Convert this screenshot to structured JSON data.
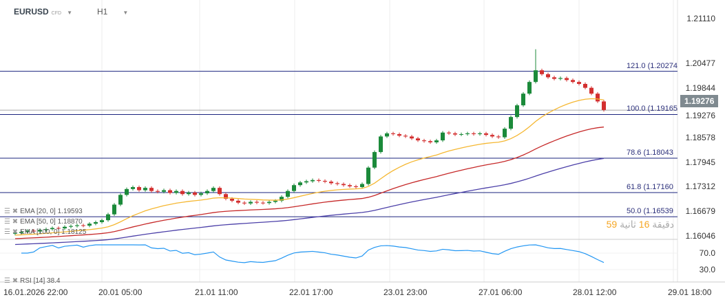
{
  "header": {
    "symbol": "EURUSD",
    "symbol_type": "CFD",
    "timeframe": "H1"
  },
  "price_axis": {
    "ticks": [
      "1.21110",
      "1.20477",
      "1.19844",
      "1.19276",
      "1.18578",
      "1.17945",
      "1.17312",
      "1.16679",
      "1.16046"
    ],
    "current_price": "1.19276"
  },
  "fibonacci": [
    {
      "label": "121.0 (1.20274",
      "price": 1.20274
    },
    {
      "label": "100.0 (1.19165",
      "price": 1.19165
    },
    {
      "label": "78.6 (1.18043",
      "price": 1.18043
    },
    {
      "label": "61.8 (1.17160",
      "price": 1.1716
    },
    {
      "label": "50.0 (1.16539",
      "price": 1.16539
    }
  ],
  "indicators": [
    {
      "label": "EMA [20, 0] 1.19593",
      "period": 20,
      "color": "#f5b731"
    },
    {
      "label": "EMA [50, 0] 1.18870",
      "period": 50,
      "color": "#c62828"
    },
    {
      "label": "EMA [100, 0] 1.18125",
      "period": 100,
      "color": "#4b3fa8"
    }
  ],
  "rsi": {
    "label": "RSI [14] 38.4",
    "levels": [
      "70.0",
      "30.0"
    ],
    "color": "#2196f3"
  },
  "countdown": {
    "minutes": "59",
    "min_word": "دقيقة",
    "seconds": "16",
    "sec_word": "ثانية"
  },
  "time_axis": [
    "16.01.2026 22:00",
    "20.01 05:00",
    "21.01 11:00",
    "22.01 17:00",
    "23.01 23:00",
    "27.01 06:00",
    "28.01 12:00",
    "29.01 18:00"
  ],
  "colors": {
    "up": "#1b8a3a",
    "down": "#d32f2f",
    "fib": "#1a237e"
  },
  "chart_data": {
    "type": "candlestick",
    "closes": [
      1.1612,
      1.1615,
      1.1618,
      1.1616,
      1.162,
      1.1622,
      1.1625,
      1.1624,
      1.1628,
      1.163,
      1.1632,
      1.1631,
      1.1636,
      1.164,
      1.1645,
      1.166,
      1.1685,
      1.171,
      1.1725,
      1.173,
      1.1722,
      1.1728,
      1.172,
      1.1718,
      1.1722,
      1.1715,
      1.172,
      1.1712,
      1.1716,
      1.171,
      1.1714,
      1.172,
      1.1728,
      1.1712,
      1.17,
      1.1695,
      1.169,
      1.1688,
      1.1692,
      1.169,
      1.1689,
      1.1692,
      1.1695,
      1.1705,
      1.172,
      1.1735,
      1.1742,
      1.1745,
      1.1748,
      1.1746,
      1.1744,
      1.174,
      1.1738,
      1.1735,
      1.1732,
      1.173,
      1.1738,
      1.178,
      1.182,
      1.186,
      1.1868,
      1.1866,
      1.1862,
      1.186,
      1.1855,
      1.185,
      1.1848,
      1.1845,
      1.185,
      1.187,
      1.1868,
      1.1865,
      1.1866,
      1.1868,
      1.1866,
      1.1868,
      1.1864,
      1.186,
      1.1858,
      1.188,
      1.191,
      1.194,
      1.197,
      1.2,
      1.203,
      1.202,
      1.2012,
      1.2008,
      1.201,
      1.2005,
      1.2,
      1.1995,
      1.1985,
      1.197,
      1.195,
      1.1928
    ]
  }
}
